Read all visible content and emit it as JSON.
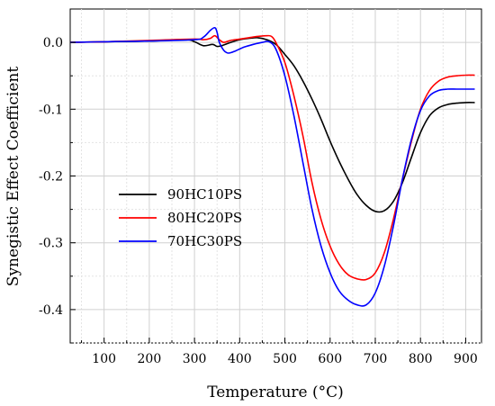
{
  "chart_data": {
    "type": "line",
    "title": "",
    "xlabel": "Temperature (°C)",
    "ylabel": "Synegistic Effect Coefficient",
    "xlim": [
      25,
      935
    ],
    "ylim": [
      -0.45,
      0.05
    ],
    "x_ticks": [
      100,
      200,
      300,
      400,
      500,
      600,
      700,
      800,
      900
    ],
    "x_tick_labels": [
      "100",
      "200",
      "300",
      "400",
      "500",
      "600",
      "700",
      "800",
      "900"
    ],
    "y_ticks": [
      0.0,
      -0.1,
      -0.2,
      -0.3,
      -0.4
    ],
    "y_tick_labels": [
      "0.0",
      "-0.1",
      "-0.2",
      "-0.3",
      "-0.4"
    ],
    "grid": true,
    "legend_position": "left-middle",
    "series": [
      {
        "name": "90HC10PS",
        "color": "#000000",
        "x": [
          25,
          100,
          200,
          280,
          300,
          320,
          340,
          350,
          360,
          380,
          400,
          420,
          440,
          460,
          480,
          500,
          520,
          540,
          560,
          580,
          600,
          620,
          640,
          660,
          680,
          700,
          720,
          740,
          760,
          780,
          800,
          820,
          840,
          860,
          880,
          900,
          920
        ],
        "y": [
          0.0,
          0.001,
          0.002,
          0.004,
          0.001,
          -0.005,
          -0.003,
          -0.006,
          -0.005,
          0.0,
          0.004,
          0.006,
          0.007,
          0.004,
          -0.003,
          -0.018,
          -0.035,
          -0.058,
          -0.085,
          -0.115,
          -0.148,
          -0.178,
          -0.205,
          -0.228,
          -0.244,
          -0.253,
          -0.252,
          -0.238,
          -0.21,
          -0.172,
          -0.135,
          -0.11,
          -0.098,
          -0.093,
          -0.091,
          -0.09,
          -0.09
        ]
      },
      {
        "name": "80HC20PS",
        "color": "#ff0000",
        "x": [
          25,
          100,
          200,
          300,
          320,
          335,
          345,
          355,
          365,
          380,
          400,
          420,
          440,
          460,
          470,
          480,
          500,
          520,
          540,
          560,
          580,
          600,
          620,
          640,
          660,
          680,
          700,
          720,
          740,
          760,
          780,
          800,
          820,
          840,
          860,
          880,
          900,
          920
        ],
        "y": [
          0.0,
          0.001,
          0.003,
          0.005,
          0.004,
          0.006,
          0.01,
          0.004,
          0.0,
          0.003,
          0.005,
          0.007,
          0.009,
          0.01,
          0.009,
          0.0,
          -0.03,
          -0.08,
          -0.14,
          -0.21,
          -0.265,
          -0.305,
          -0.332,
          -0.348,
          -0.354,
          -0.355,
          -0.345,
          -0.315,
          -0.265,
          -0.205,
          -0.148,
          -0.1,
          -0.072,
          -0.058,
          -0.052,
          -0.05,
          -0.049,
          -0.049
        ]
      },
      {
        "name": "70HC30PS",
        "color": "#0000ff",
        "x": [
          25,
          100,
          200,
          300,
          320,
          335,
          345,
          350,
          355,
          365,
          375,
          390,
          410,
          430,
          450,
          465,
          480,
          500,
          520,
          540,
          560,
          580,
          600,
          620,
          640,
          660,
          680,
          700,
          720,
          740,
          760,
          780,
          800,
          820,
          840,
          860,
          880,
          900,
          920
        ],
        "y": [
          0.0,
          0.001,
          0.002,
          0.004,
          0.008,
          0.018,
          0.022,
          0.015,
          0.0,
          -0.012,
          -0.016,
          -0.013,
          -0.007,
          -0.003,
          0.0,
          0.001,
          -0.01,
          -0.05,
          -0.11,
          -0.18,
          -0.25,
          -0.305,
          -0.345,
          -0.372,
          -0.386,
          -0.393,
          -0.393,
          -0.375,
          -0.335,
          -0.275,
          -0.205,
          -0.145,
          -0.102,
          -0.08,
          -0.072,
          -0.07,
          -0.07,
          -0.07,
          -0.07
        ]
      }
    ]
  }
}
